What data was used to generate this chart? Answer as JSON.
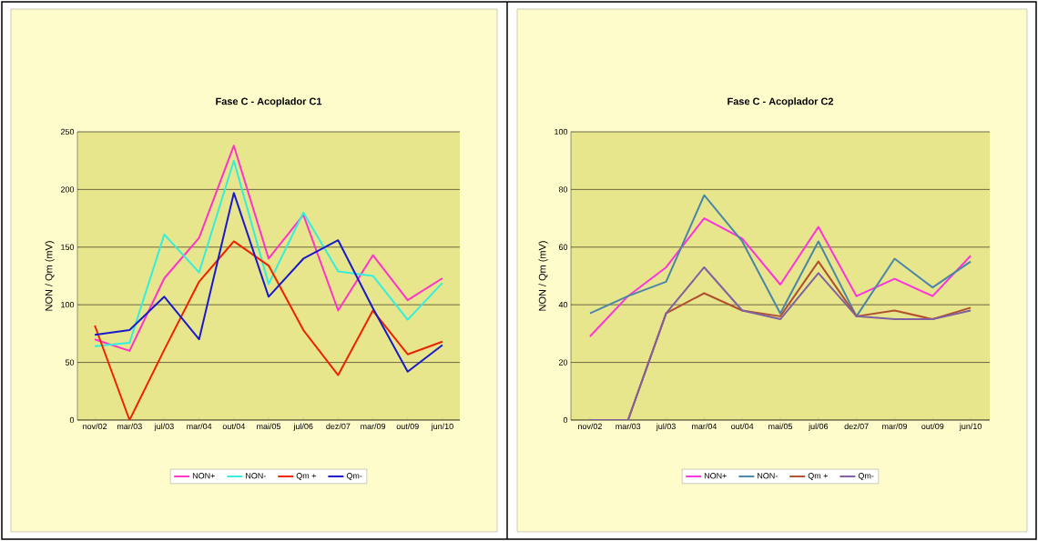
{
  "chart_data": [
    {
      "type": "line",
      "title": "Fase C - Acoplador C1",
      "ylabel": "NON / Qm (mV)",
      "categories": [
        "nov/02",
        "mar/03",
        "jul/03",
        "mar/04",
        "out/04",
        "mai/05",
        "jul/06",
        "dez/07",
        "mar/09",
        "out/09",
        "jun/10"
      ],
      "series": [
        {
          "name": "NON+",
          "color": "#ff33cc",
          "values": [
            70,
            60,
            123,
            158,
            238,
            140,
            178,
            95,
            143,
            104,
            123
          ]
        },
        {
          "name": "NON-",
          "color": "#33eedd",
          "values": [
            64,
            67,
            161,
            128,
            225,
            118,
            180,
            129,
            125,
            87,
            119
          ]
        },
        {
          "name": "Qm +",
          "color": "#ee2200",
          "values": [
            82,
            0,
            61,
            120,
            155,
            134,
            78,
            39,
            95,
            57,
            68
          ]
        },
        {
          "name": "Qm-",
          "color": "#1a1acc",
          "values": [
            74,
            78,
            107,
            70,
            197,
            107,
            140,
            156,
            97,
            42,
            65
          ]
        }
      ],
      "ylim": [
        0,
        250
      ],
      "yticks": [
        0,
        50,
        100,
        150,
        200,
        250
      ],
      "grid": "y",
      "legend": "bottom"
    },
    {
      "type": "line",
      "title": "Fase C - Acoplador C2",
      "ylabel": "NON / Qm (mV)",
      "categories": [
        "nov/02",
        "mar/03",
        "jul/03",
        "mar/04",
        "out/04",
        "mai/05",
        "jul/06",
        "dez/07",
        "mar/09",
        "out/09",
        "jun/10"
      ],
      "series": [
        {
          "name": "NON+",
          "color": "#ff33dd",
          "values": [
            29,
            43,
            53,
            70,
            63,
            47,
            67,
            43,
            49,
            43,
            57
          ]
        },
        {
          "name": "NON-",
          "color": "#4a86a8",
          "values": [
            37,
            43,
            48,
            78,
            62,
            37,
            62,
            36,
            56,
            46,
            55
          ]
        },
        {
          "name": "Qm +",
          "color": "#b05030",
          "values": [
            0,
            0,
            37,
            44,
            38,
            36,
            55,
            36,
            38,
            35,
            39
          ]
        },
        {
          "name": "Qm-",
          "color": "#8060a0",
          "values": [
            0,
            0,
            37,
            53,
            38,
            35,
            51,
            36,
            35,
            35,
            38
          ]
        }
      ],
      "ylim": [
        0,
        100
      ],
      "yticks": [
        0,
        20,
        40,
        60,
        80,
        100
      ],
      "grid": "y",
      "legend": "bottom"
    }
  ]
}
